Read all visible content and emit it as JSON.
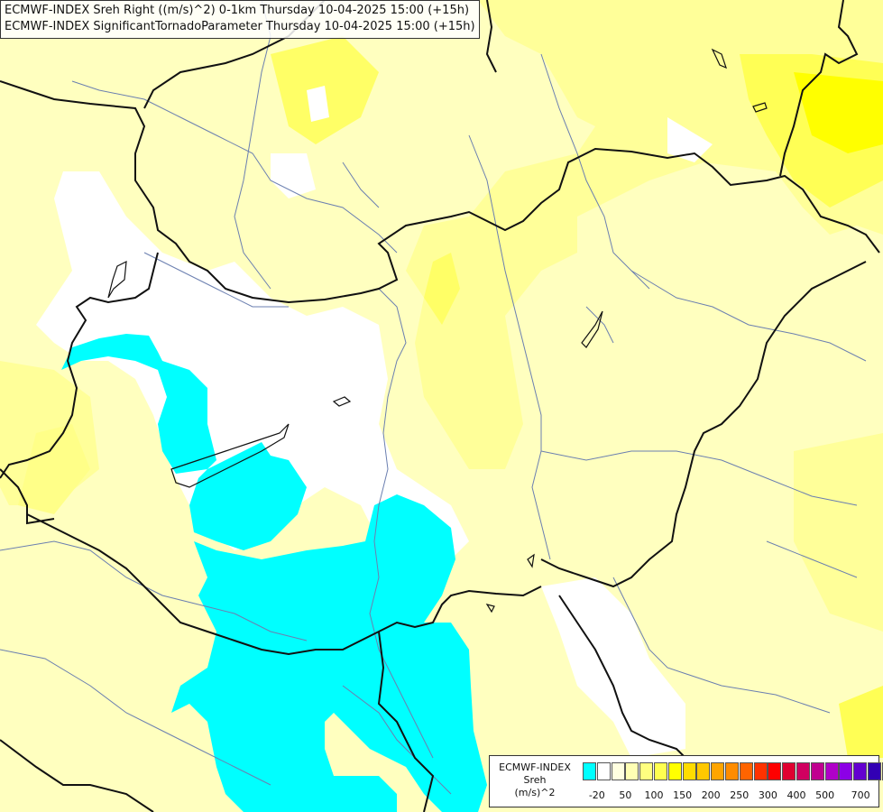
{
  "titles": {
    "line1": "ECMWF-INDEX Sreh Right ((m/s)^2) 0-1km Thursday 10-04-2025 15:00 (+15h)",
    "line2": "ECMWF-INDEX SignificantTornadoParameter Thursday 10-04-2025 15:00 (+15h)"
  },
  "legend": {
    "title": "ECMWF-INDEX",
    "param": "Sreh",
    "unit": "(m/s)^2",
    "colors": [
      "#00ffff",
      "#ffffff",
      "#ffffe0",
      "#ffffb4",
      "#ffff80",
      "#ffff50",
      "#ffff00",
      "#ffdc00",
      "#ffc800",
      "#ffa500",
      "#ff8c00",
      "#ff6400",
      "#ff3200",
      "#ff0000",
      "#e00030",
      "#d00060",
      "#c00090",
      "#b000c8",
      "#8c00e6",
      "#6400d0",
      "#3200b4",
      "#000080"
    ],
    "ticks": [
      "-20",
      "50",
      "100",
      "150",
      "200",
      "250",
      "300",
      "400",
      "500",
      "700"
    ]
  },
  "colors": {
    "background": "#ffffbf",
    "white_zone": "#ffffff",
    "cyan_zone": "#00ffff",
    "yellow_light": "#ffff99",
    "yellow_mid": "#ffff66",
    "yellow_strong": "#ffff00",
    "borders": "#111111",
    "rivers": "#6b7fb0"
  }
}
